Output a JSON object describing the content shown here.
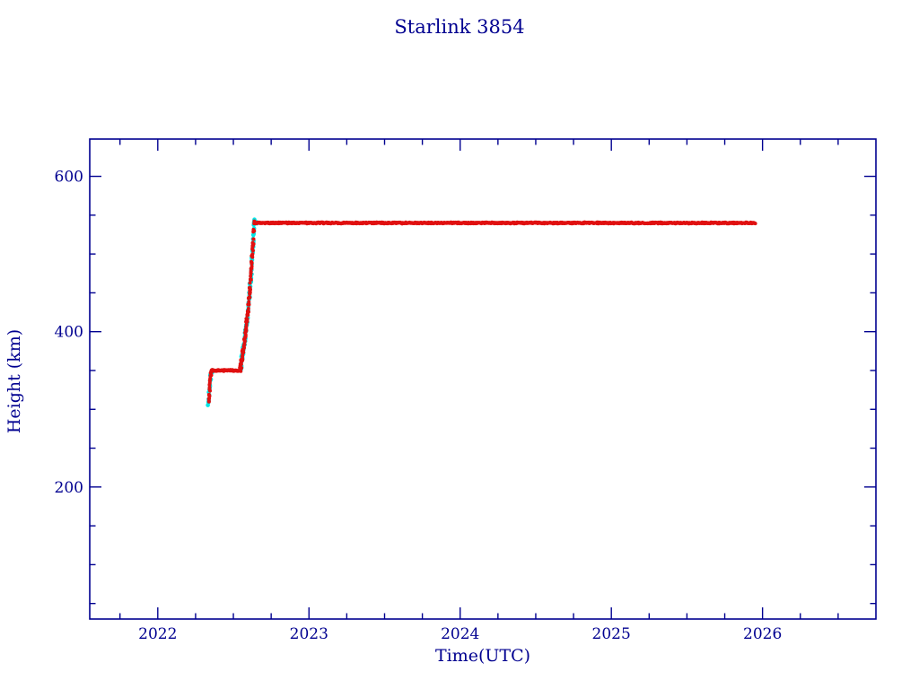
{
  "chart_data": {
    "type": "scatter",
    "title": "Starlink 3854",
    "xlabel": "Time(UTC)",
    "ylabel": "Height (km)",
    "xlim": [
      2021.55,
      2026.75
    ],
    "ylim": [
      30,
      648
    ],
    "grid": false,
    "legend": "none",
    "axis_color": "#000090",
    "background": "#ffffff",
    "x_ticks": {
      "major": [
        2022,
        2023,
        2024,
        2025,
        2026
      ],
      "labels": [
        "2022",
        "2023",
        "2024",
        "2025",
        "2026"
      ],
      "minor_step": 0.25
    },
    "y_ticks": {
      "major": [
        200,
        400,
        600
      ],
      "labels": [
        "200",
        "400",
        "600"
      ],
      "minor_step": 50
    },
    "profile_keypoints": [
      [
        2022.333,
        305
      ],
      [
        2022.34,
        318
      ],
      [
        2022.352,
        347
      ],
      [
        2022.36,
        350
      ],
      [
        2022.545,
        350
      ],
      [
        2022.575,
        390
      ],
      [
        2022.6,
        432
      ],
      [
        2022.618,
        478
      ],
      [
        2022.63,
        512
      ],
      [
        2022.638,
        540
      ],
      [
        2025.952,
        540
      ]
    ],
    "series": [
      {
        "name": "element-set-heights-cyan",
        "color": "#00e6e6",
        "dot_radius": 2.3,
        "ranges": [
          {
            "t0": 2022.333,
            "t1": 2022.362,
            "step": 0.0013,
            "jitter": 2.5
          },
          {
            "t0": 2022.548,
            "t1": 2022.64,
            "step": 0.0009,
            "jitter": 5.0
          },
          {
            "t0": 2022.636,
            "t1": 2022.66,
            "step": 0.002,
            "jitter": 1.2
          }
        ]
      },
      {
        "name": "observed-heights-red",
        "color": "#e01010",
        "dot_radius": 2.0,
        "ranges": [
          {
            "t0": 2022.335,
            "t1": 2022.36,
            "step": 0.001,
            "jitter": 2.0
          },
          {
            "t0": 2022.36,
            "t1": 2022.545,
            "step": 0.0028,
            "jitter": 0.8
          },
          {
            "t0": 2022.545,
            "t1": 2022.638,
            "step": 0.0008,
            "jitter": 4.5
          },
          {
            "t0": 2022.638,
            "t1": 2025.952,
            "step": 0.0034,
            "jitter": 0.8
          }
        ]
      }
    ]
  }
}
